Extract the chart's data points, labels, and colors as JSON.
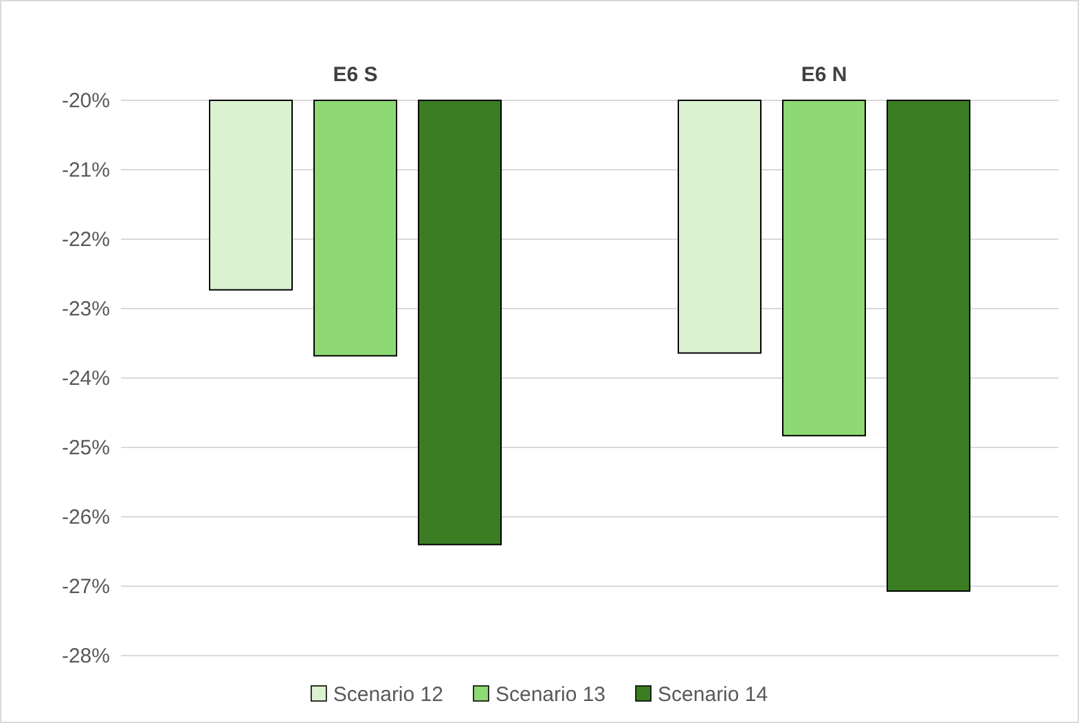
{
  "chart_data": {
    "type": "bar",
    "categories": [
      "E6 S",
      "E6 N"
    ],
    "series": [
      {
        "name": "Scenario 12",
        "color": "#daf2d0",
        "values": [
          -22.73,
          -23.64
        ]
      },
      {
        "name": "Scenario 13",
        "color": "#8ed973",
        "values": [
          -23.68,
          -24.83
        ]
      },
      {
        "name": "Scenario 14",
        "color": "#3a7d22",
        "values": [
          -26.4,
          -27.07
        ]
      }
    ],
    "ylim": [
      -28,
      -20
    ],
    "yticks": [
      {
        "value": -28,
        "label": "-28%"
      },
      {
        "value": -27,
        "label": "-27%"
      },
      {
        "value": -26,
        "label": "-26%"
      },
      {
        "value": -25,
        "label": "-25%"
      },
      {
        "value": -24,
        "label": "-24%"
      },
      {
        "value": -23,
        "label": "-23%"
      },
      {
        "value": -22,
        "label": "-22%"
      },
      {
        "value": -21,
        "label": "-21%"
      },
      {
        "value": -20,
        "label": "-20%"
      }
    ],
    "grid": "y",
    "legend": "bottom"
  }
}
